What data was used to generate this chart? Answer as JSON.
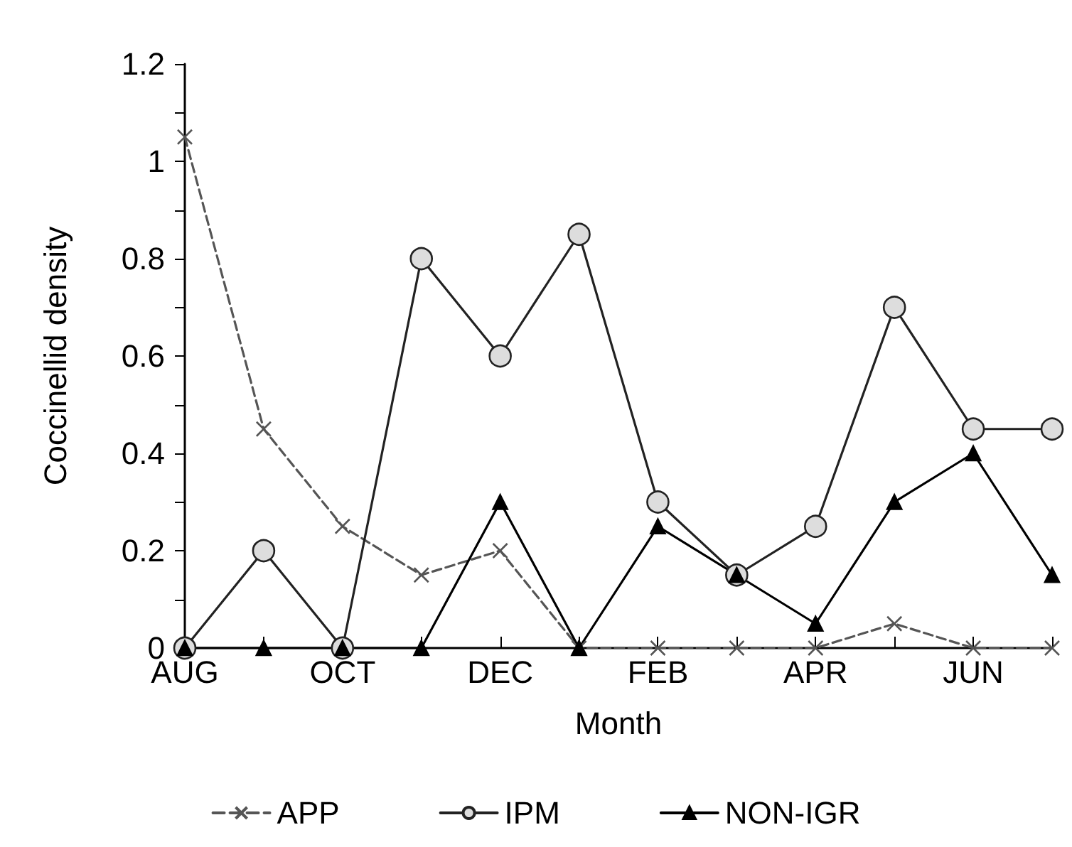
{
  "chart_data": {
    "type": "line",
    "xlabel": "Month",
    "ylabel": "Coccinellid density",
    "categories": [
      "AUG",
      null,
      "OCT",
      null,
      "DEC",
      null,
      "FEB",
      null,
      "APR",
      null,
      "JUN",
      null
    ],
    "series": [
      {
        "name": "APP",
        "color": "#555555",
        "marker": "cross",
        "line_style": "dashed",
        "values": [
          1.05,
          0.45,
          0.25,
          0.15,
          0.2,
          0,
          0,
          0,
          0,
          0.05,
          0,
          0
        ]
      },
      {
        "name": "IPM",
        "color": "#222222",
        "marker": "circle",
        "line_style": "solid",
        "values": [
          0,
          0.2,
          0,
          0.8,
          0.6,
          0.85,
          0.3,
          0.15,
          0.25,
          0.7,
          0.45,
          0.45
        ]
      },
      {
        "name": "NON-IGR",
        "color": "#000000",
        "marker": "triangle",
        "line_style": "solid",
        "values": [
          0,
          0,
          0,
          0,
          0.3,
          0,
          0.25,
          0.15,
          0.05,
          0.3,
          0.4,
          0.15
        ]
      }
    ],
    "ylim": [
      0,
      1.2
    ],
    "yticks": [
      0,
      {
        "value": 0.1,
        "label": null
      },
      0.2,
      {
        "value": 0.3,
        "label": null
      },
      0.4,
      {
        "value": 0.5,
        "label": null
      },
      0.6,
      {
        "value": 0.7,
        "label": null
      },
      0.8,
      {
        "value": 0.9,
        "label": null
      },
      1,
      {
        "value": 1.1,
        "label": null
      },
      1.2
    ],
    "grid": false,
    "legend": "bottom"
  }
}
